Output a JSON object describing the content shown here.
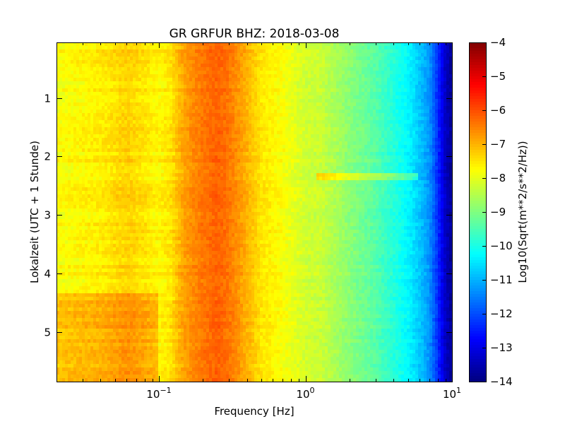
{
  "chart_data": {
    "type": "heatmap",
    "title": "GR GRFUR BHZ: 2018-03-08",
    "xlabel": "Frequency [Hz]",
    "ylabel": "Lokalzeit (UTC + 1 Stunde)",
    "x_scale": "log",
    "xlim": [
      0.02,
      10
    ],
    "ylim": [
      5.85,
      0.05
    ],
    "x_ticks": [
      {
        "value": 0.1,
        "base": "10",
        "exp": "-1"
      },
      {
        "value": 1,
        "base": "10",
        "exp": "0"
      },
      {
        "value": 10,
        "base": "10",
        "exp": "1"
      }
    ],
    "y_ticks": [
      {
        "value": 1,
        "label": "1"
      },
      {
        "value": 2,
        "label": "2"
      },
      {
        "value": 3,
        "label": "3"
      },
      {
        "value": 4,
        "label": "4"
      },
      {
        "value": 5,
        "label": "5"
      }
    ],
    "colorbar": {
      "label": "Log10(Sqrt(m**2/s**2/Hz))",
      "colormap": "jet",
      "range": [
        -14,
        -4
      ],
      "ticks": [
        {
          "value": -4,
          "label": "−4"
        },
        {
          "value": -5,
          "label": "−5"
        },
        {
          "value": -6,
          "label": "−6"
        },
        {
          "value": -7,
          "label": "−7"
        },
        {
          "value": -8,
          "label": "−8"
        },
        {
          "value": -9,
          "label": "−9"
        },
        {
          "value": -10,
          "label": "−10"
        },
        {
          "value": -11,
          "label": "−11"
        },
        {
          "value": -12,
          "label": "−12"
        },
        {
          "value": -13,
          "label": "−13"
        },
        {
          "value": -14,
          "label": "−14"
        }
      ]
    },
    "spectrum_profile": {
      "frequency_hz": [
        0.02,
        0.04,
        0.06,
        0.08,
        0.1,
        0.12,
        0.15,
        0.2,
        0.25,
        0.3,
        0.4,
        0.5,
        0.7,
        1.0,
        1.3,
        2.0,
        3.0,
        4.0,
        5.0,
        6.0,
        7.0,
        8.0,
        9.0,
        10.0
      ],
      "log10_amplitude": [
        -7.8,
        -7.6,
        -7.3,
        -7.5,
        -7.7,
        -7.5,
        -6.8,
        -6.4,
        -6.2,
        -6.4,
        -7.0,
        -7.5,
        -7.8,
        -8.2,
        -8.3,
        -8.9,
        -9.4,
        -9.9,
        -10.3,
        -10.8,
        -11.3,
        -12.3,
        -13.3,
        -13.8
      ]
    },
    "features": [
      {
        "type": "daytime_band_increase",
        "hours": [
          4.35,
          5.85
        ],
        "frequency_hz": [
          0.02,
          0.1
        ],
        "delta": 0.6
      },
      {
        "type": "transient_line",
        "hour": 2.35,
        "frequency_hz": [
          1.2,
          6.0
        ],
        "delta": 0.9
      }
    ]
  }
}
